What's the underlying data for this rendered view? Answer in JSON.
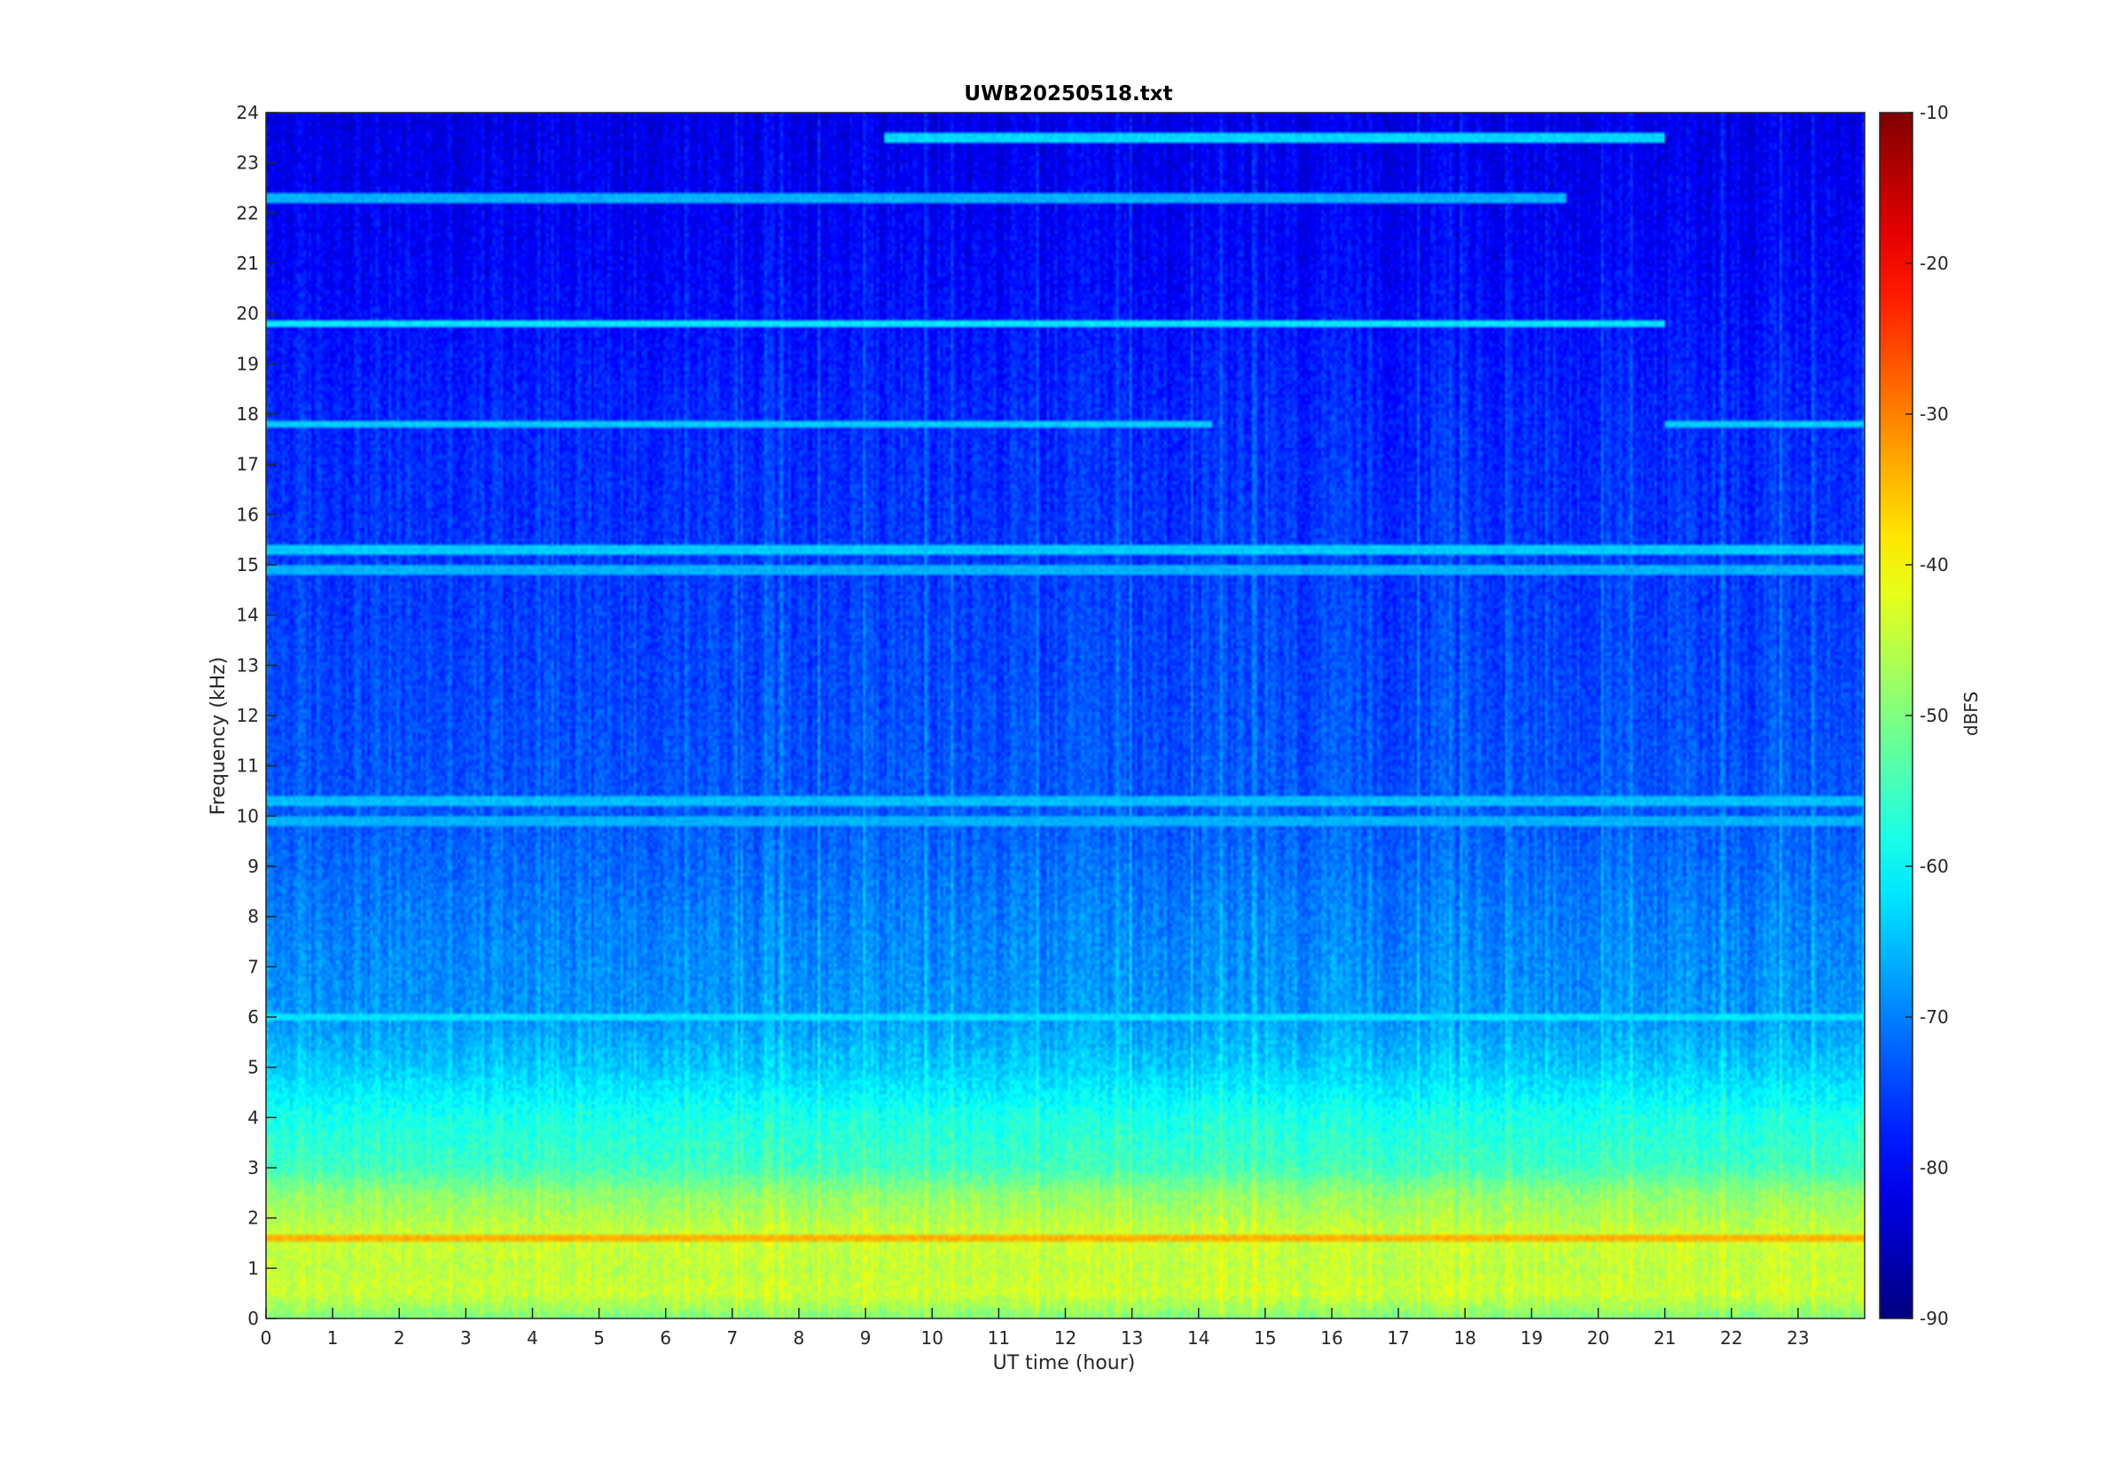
{
  "chart_data": {
    "type": "heatmap",
    "title": "UWB20250518.txt",
    "xlabel": "UT time (hour)",
    "ylabel": "Frequency (kHz)",
    "xlim": [
      0,
      24
    ],
    "ylim": [
      0,
      24
    ],
    "x_ticks": [
      0,
      1,
      2,
      3,
      4,
      5,
      6,
      7,
      8,
      9,
      10,
      11,
      12,
      13,
      14,
      15,
      16,
      17,
      18,
      19,
      20,
      21,
      22,
      23
    ],
    "y_ticks": [
      0,
      1,
      2,
      3,
      4,
      5,
      6,
      7,
      8,
      9,
      10,
      11,
      12,
      13,
      14,
      15,
      16,
      17,
      18,
      19,
      20,
      21,
      22,
      23,
      24
    ],
    "colorbar": {
      "label": "dBFS",
      "range": [
        -90,
        -10
      ],
      "ticks": [
        -10,
        -20,
        -30,
        -40,
        -50,
        -60,
        -70,
        -80,
        -90
      ],
      "colormap": "jet"
    },
    "background_level_profile": [
      {
        "freq_khz": 0.0,
        "dbfs": -50
      },
      {
        "freq_khz": 0.5,
        "dbfs": -44
      },
      {
        "freq_khz": 1.0,
        "dbfs": -45
      },
      {
        "freq_khz": 1.6,
        "dbfs": -44
      },
      {
        "freq_khz": 2.5,
        "dbfs": -49
      },
      {
        "freq_khz": 3.0,
        "dbfs": -55
      },
      {
        "freq_khz": 4.0,
        "dbfs": -58
      },
      {
        "freq_khz": 5.0,
        "dbfs": -64
      },
      {
        "freq_khz": 6.0,
        "dbfs": -68
      },
      {
        "freq_khz": 8.0,
        "dbfs": -70
      },
      {
        "freq_khz": 10.0,
        "dbfs": -73
      },
      {
        "freq_khz": 14.0,
        "dbfs": -75
      },
      {
        "freq_khz": 18.0,
        "dbfs": -77
      },
      {
        "freq_khz": 21.0,
        "dbfs": -80
      },
      {
        "freq_khz": 24.0,
        "dbfs": -82
      }
    ],
    "narrowband_lines": [
      {
        "freq_khz": 19.8,
        "start_hour": 0,
        "end_hour": 21,
        "dbfs": -62
      },
      {
        "freq_khz": 17.8,
        "start_hour": 0,
        "end_hour": 14.2,
        "dbfs": -64
      },
      {
        "freq_khz": 17.8,
        "start_hour": 21,
        "end_hour": 24,
        "dbfs": -64
      },
      {
        "freq_khz": 23.5,
        "start_hour": 9.3,
        "end_hour": 21,
        "dbfs": -63
      },
      {
        "freq_khz": 22.3,
        "start_hour": 0,
        "end_hour": 19.5,
        "dbfs": -66
      },
      {
        "freq_khz": 15.3,
        "start_hour": 0,
        "end_hour": 24,
        "dbfs": -64
      },
      {
        "freq_khz": 14.9,
        "start_hour": 0,
        "end_hour": 24,
        "dbfs": -66
      },
      {
        "freq_khz": 10.3,
        "start_hour": 0,
        "end_hour": 24,
        "dbfs": -65
      },
      {
        "freq_khz": 9.9,
        "start_hour": 0,
        "end_hour": 24,
        "dbfs": -66
      },
      {
        "freq_khz": 6.0,
        "start_hour": 0,
        "end_hour": 24,
        "dbfs": -62
      },
      {
        "freq_khz": 1.6,
        "start_hour": 0,
        "end_hour": 24,
        "dbfs": -34
      }
    ]
  }
}
